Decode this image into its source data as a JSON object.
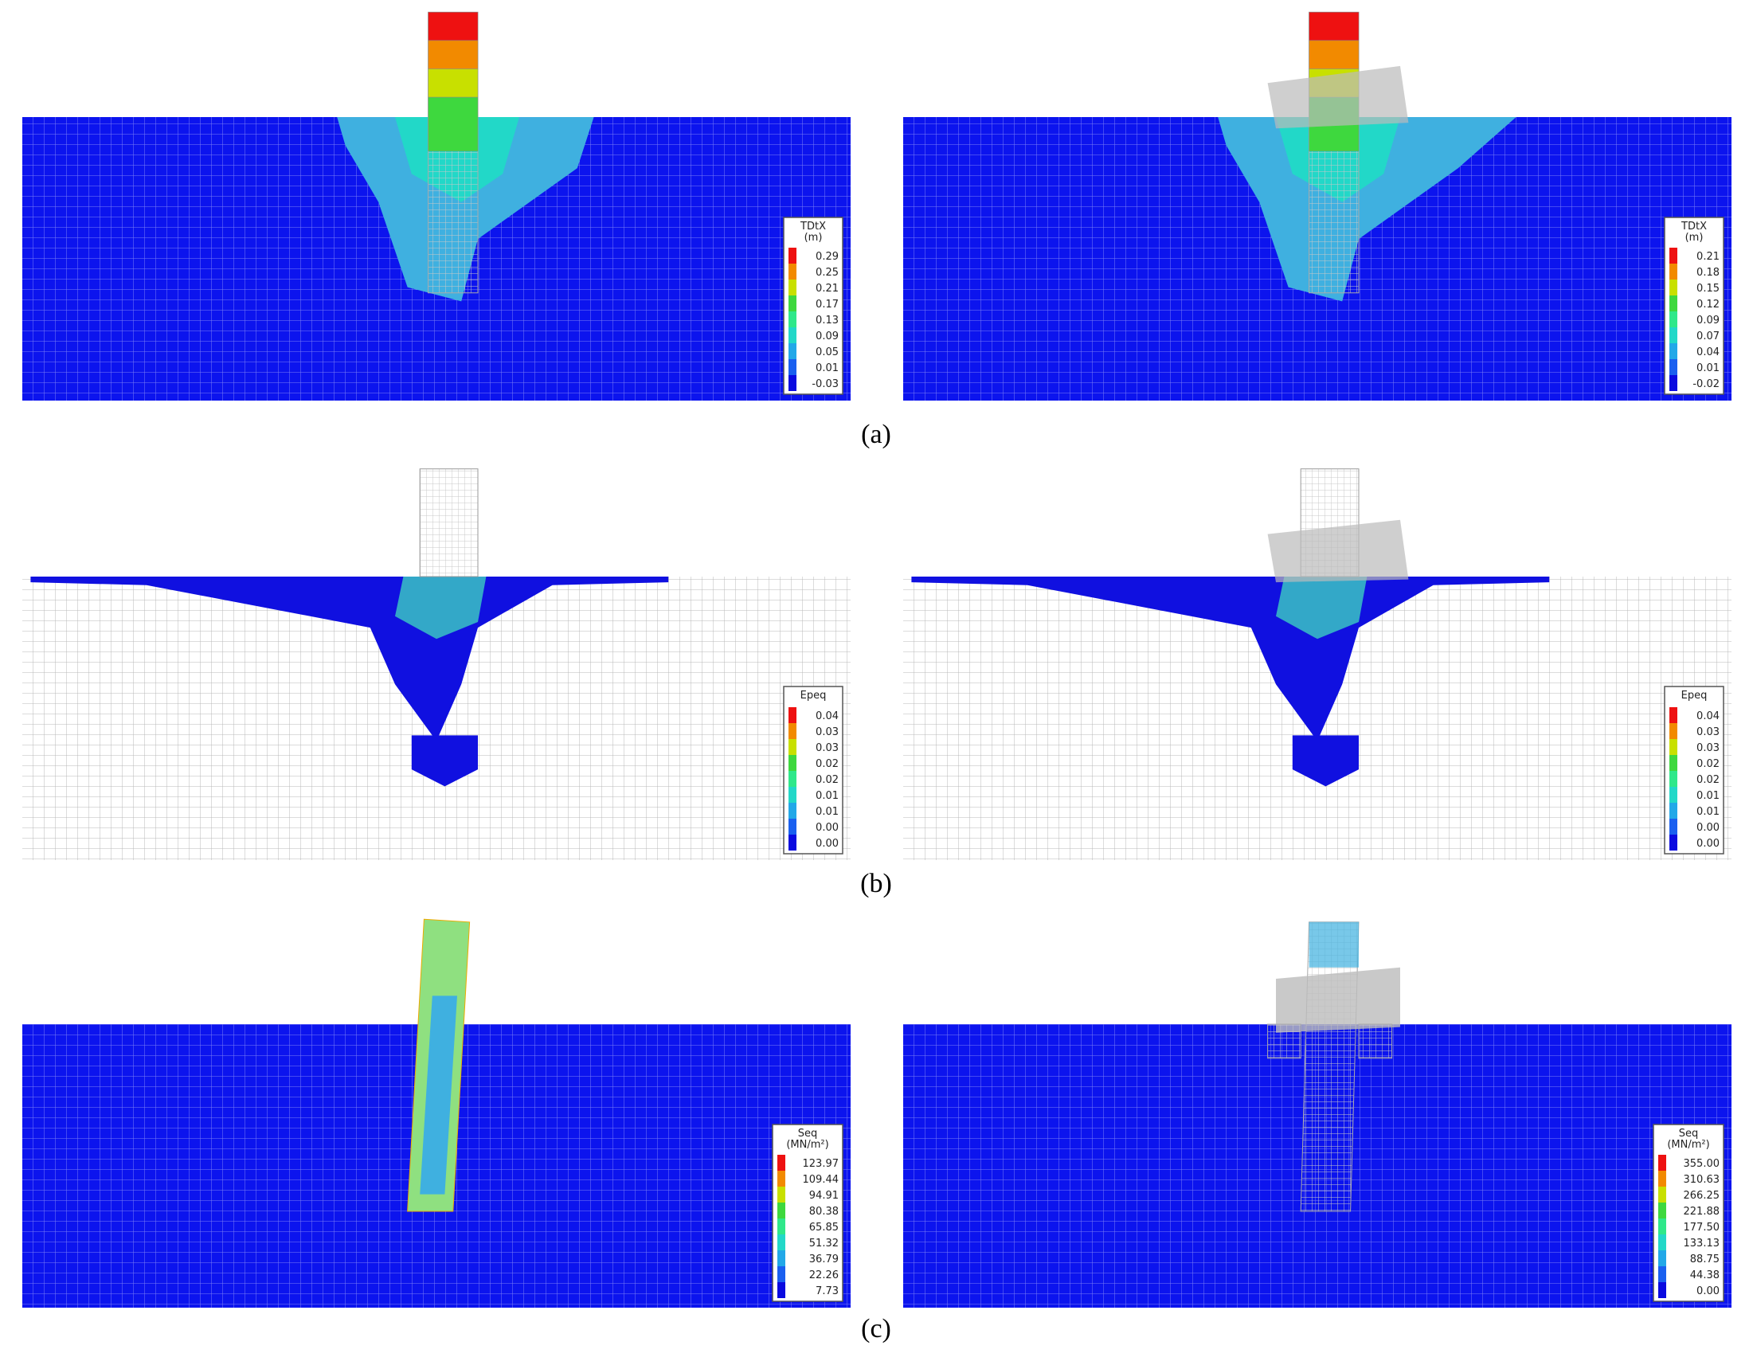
{
  "panels": [
    {
      "caption": "(a)",
      "plots": [
        {
          "legend": {
            "title": "TDtX",
            "unit": "(m)",
            "labels": [
              "0.29",
              "0.25",
              "0.21",
              "0.17",
              "0.13",
              "0.09",
              "0.05",
              "0.01",
              "-0.03"
            ]
          }
        },
        {
          "legend": {
            "title": "TDtX",
            "unit": "(m)",
            "labels": [
              "0.21",
              "0.18",
              "0.15",
              "0.12",
              "0.09",
              "0.07",
              "0.04",
              "0.01",
              "-0.02"
            ]
          }
        }
      ]
    },
    {
      "caption": "(b)",
      "plots": [
        {
          "legend": {
            "title": "Epeq",
            "labels": [
              "0.04",
              "0.03",
              "0.03",
              "0.02",
              "0.02",
              "0.01",
              "0.01",
              "0.00",
              "0.00"
            ]
          }
        },
        {
          "legend": {
            "title": "Epeq",
            "labels": [
              "0.04",
              "0.03",
              "0.03",
              "0.02",
              "0.02",
              "0.01",
              "0.01",
              "0.00",
              "0.00"
            ]
          }
        }
      ]
    },
    {
      "caption": "(c)",
      "plots": [
        {
          "legend": {
            "title": "Seq",
            "unit": "(MN/m²)",
            "labels": [
              "123.97",
              "109.44",
              "94.91",
              "80.38",
              "65.85",
              "51.32",
              "36.79",
              "22.26",
              "7.73"
            ]
          }
        },
        {
          "legend": {
            "title": "Seq",
            "unit": "(MN/m²)",
            "labels": [
              "355.00",
              "310.63",
              "266.25",
              "221.88",
              "177.50",
              "133.13",
              "88.75",
              "44.38",
              "0.00"
            ]
          }
        }
      ]
    }
  ]
}
